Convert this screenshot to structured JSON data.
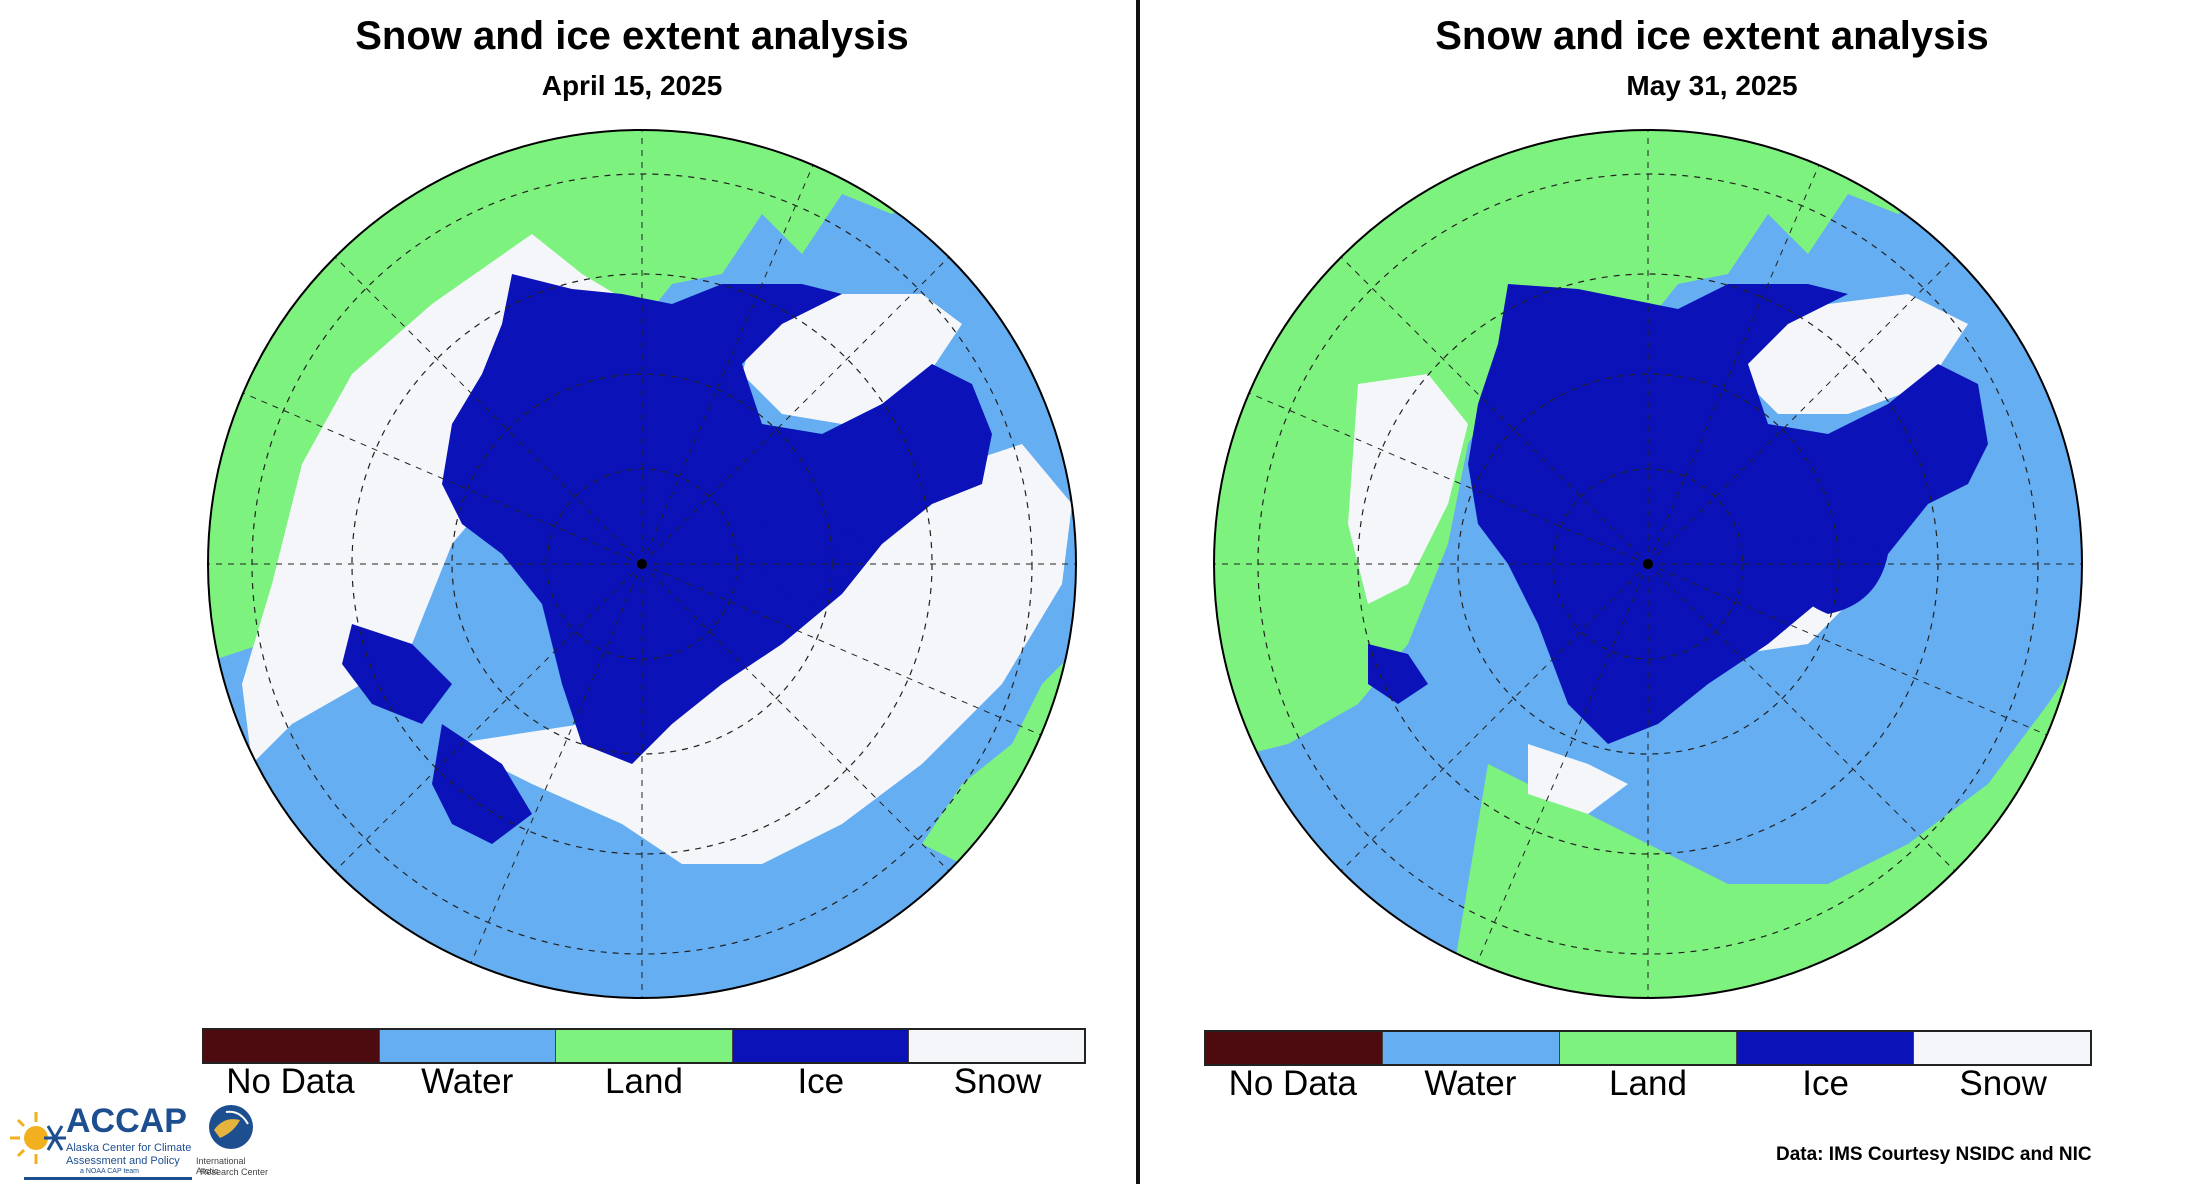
{
  "panels": [
    {
      "title": "Snow and ice extent analysis",
      "date": "April 15, 2025"
    },
    {
      "title": "Snow and ice extent analysis",
      "date": "May 31, 2025"
    }
  ],
  "legend": [
    {
      "label": "No Data",
      "color": "#4d0a0f"
    },
    {
      "label": "Water",
      "color": "#66aef2"
    },
    {
      "label": "Land",
      "color": "#7ef27e"
    },
    {
      "label": "Ice",
      "color": "#0a12b8"
    },
    {
      "label": "Snow",
      "color": "#f5f6fa"
    }
  ],
  "credit": "Data: IMS Courtesy NSIDC and NIC",
  "logos": {
    "accap": {
      "name": "ACCAP",
      "line1": "Alaska Center for Climate",
      "line2": "Assessment and Policy",
      "line3": "a NOAA CAP team"
    },
    "iarc": {
      "line1": "International Arctic",
      "line2": "Research Center"
    }
  }
}
